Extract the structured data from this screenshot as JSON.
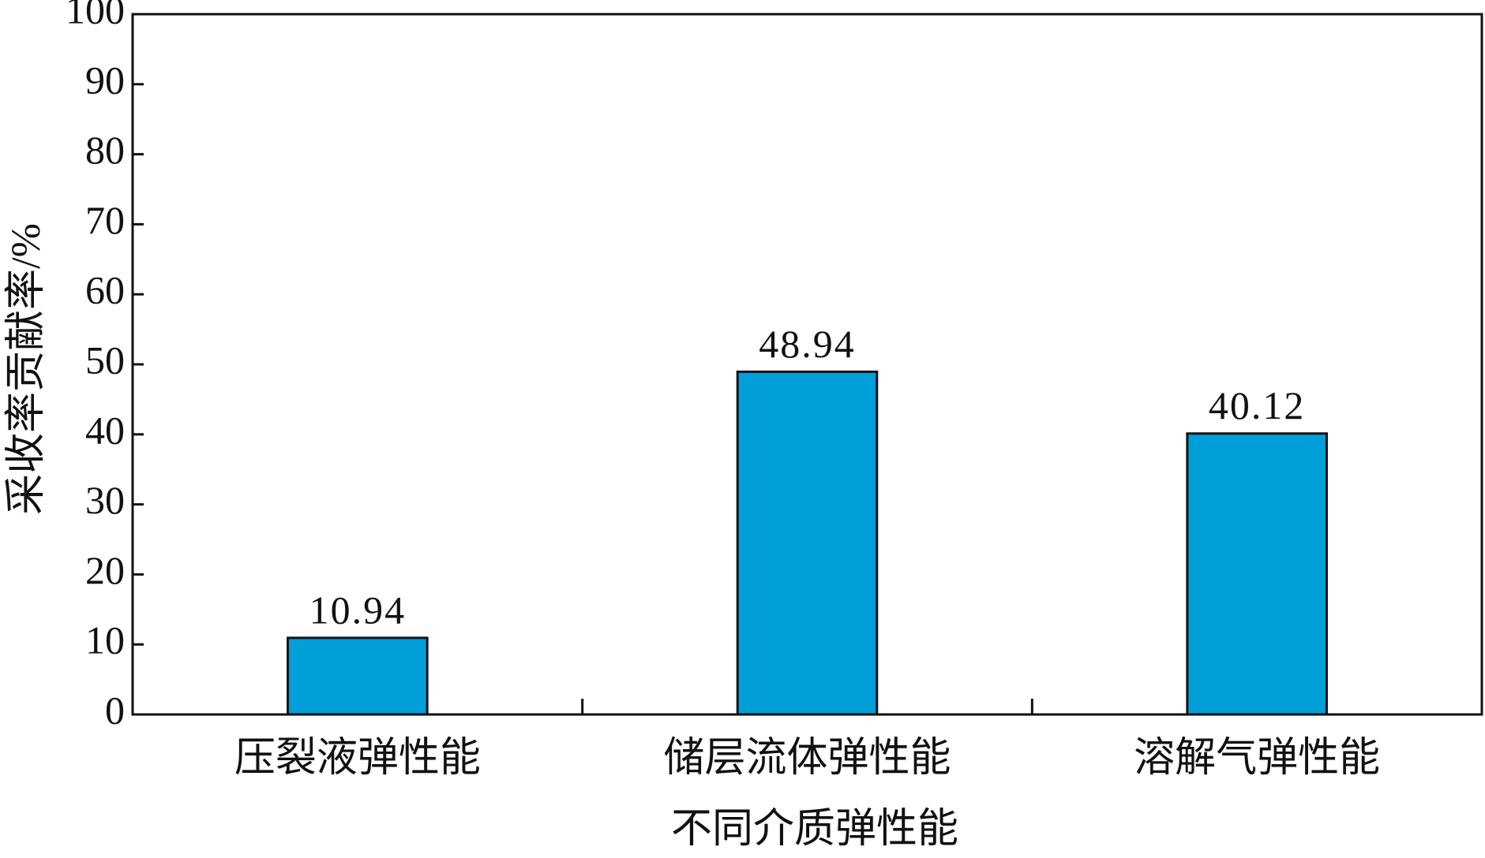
{
  "chart_data": {
    "type": "bar",
    "x_label": "不同介质弹性能",
    "y_label": "采收率贡献率/%",
    "categories": [
      "压裂液弹性能",
      "储层流体弹性能",
      "溶解气弹性能"
    ],
    "values": [
      10.94,
      48.94,
      40.12
    ],
    "color": "#009fd9",
    "ylim": [
      0,
      100
    ],
    "yticks": [
      0,
      10,
      20,
      30,
      40,
      50,
      60,
      70,
      80,
      90,
      100
    ],
    "grid": false
  }
}
